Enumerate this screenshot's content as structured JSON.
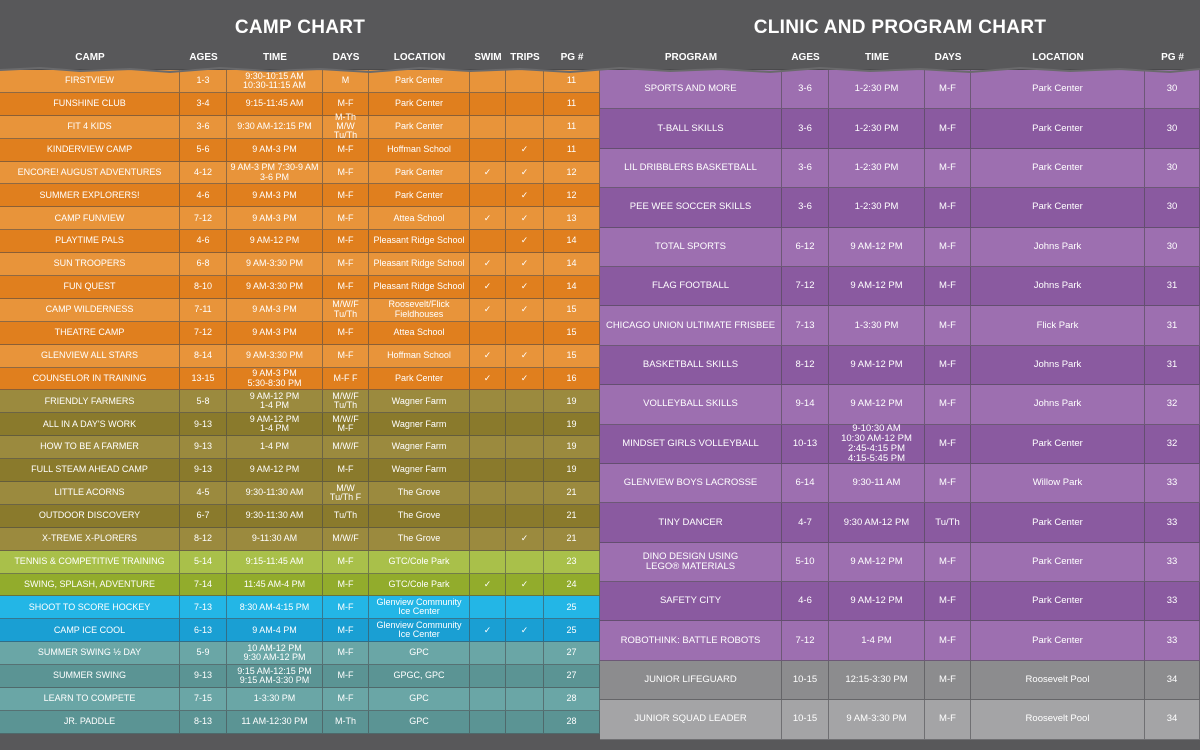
{
  "camp": {
    "title": "CAMP CHART",
    "headers": {
      "name": "CAMP",
      "ages": "AGES",
      "time": "TIME",
      "days": "DAYS",
      "location": "LOCATION",
      "swim": "SWIM",
      "trips": "TRIPS",
      "pg": "PG #"
    },
    "rows": [
      {
        "name": "FIRSTVIEW",
        "ages": "1-3",
        "time": "9:30-10:15 AM\n10:30-11:15 AM",
        "days": "M",
        "location": "Park Center",
        "swim": "",
        "trips": "",
        "pg": "11",
        "color": "#e8943a"
      },
      {
        "name": "FUNSHINE CLUB",
        "ages": "3-4",
        "time": "9:15-11:45 AM",
        "days": "M-F",
        "location": "Park Center",
        "swim": "",
        "trips": "",
        "pg": "11",
        "color": "#e07f1e"
      },
      {
        "name": "FIT 4 KIDS",
        "ages": "3-6",
        "time": "9:30 AM-12:15 PM",
        "days": "M-Th  M/W\nTu/Th",
        "location": "Park Center",
        "swim": "",
        "trips": "",
        "pg": "11",
        "color": "#e8943a"
      },
      {
        "name": "KINDERVIEW CAMP",
        "ages": "5-6",
        "time": "9 AM-3 PM",
        "days": "M-F",
        "location": "Hoffman School",
        "swim": "",
        "trips": "✓",
        "pg": "11",
        "color": "#e07f1e"
      },
      {
        "name": "ENCORE! AUGUST ADVENTURES",
        "ages": "4-12",
        "time": "9 AM-3 PM  7:30-9 AM\n3-6 PM",
        "days": "M-F",
        "location": "Park Center",
        "swim": "✓",
        "trips": "✓",
        "pg": "12",
        "color": "#e8943a"
      },
      {
        "name": "SUMMER EXPLORERS!",
        "ages": "4-6",
        "time": "9 AM-3 PM",
        "days": "M-F",
        "location": "Park Center",
        "swim": "",
        "trips": "✓",
        "pg": "12",
        "color": "#e07f1e"
      },
      {
        "name": "CAMP FUNVIEW",
        "ages": "7-12",
        "time": "9 AM-3 PM",
        "days": "M-F",
        "location": "Attea School",
        "swim": "✓",
        "trips": "✓",
        "pg": "13",
        "color": "#e8943a"
      },
      {
        "name": "PLAYTIME PALS",
        "ages": "4-6",
        "time": "9 AM-12 PM",
        "days": "M-F",
        "location": "Pleasant Ridge School",
        "swim": "",
        "trips": "✓",
        "pg": "14",
        "color": "#e07f1e"
      },
      {
        "name": "SUN TROOPERS",
        "ages": "6-8",
        "time": "9 AM-3:30 PM",
        "days": "M-F",
        "location": "Pleasant Ridge School",
        "swim": "✓",
        "trips": "✓",
        "pg": "14",
        "color": "#e8943a"
      },
      {
        "name": "FUN QUEST",
        "ages": "8-10",
        "time": "9 AM-3:30 PM",
        "days": "M-F",
        "location": "Pleasant Ridge School",
        "swim": "✓",
        "trips": "✓",
        "pg": "14",
        "color": "#e07f1e"
      },
      {
        "name": "CAMP WILDERNESS",
        "ages": "7-11",
        "time": "9 AM-3 PM",
        "days": "M/W/F\nTu/Th",
        "location": "Roosevelt/Flick\nFieldhouses",
        "swim": "✓",
        "trips": "✓",
        "pg": "15",
        "color": "#e8943a"
      },
      {
        "name": "THEATRE CAMP",
        "ages": "7-12",
        "time": "9 AM-3 PM",
        "days": "M-F",
        "location": "Attea School",
        "swim": "",
        "trips": "",
        "pg": "15",
        "color": "#e07f1e"
      },
      {
        "name": "GLENVIEW ALL STARS",
        "ages": "8-14",
        "time": "9 AM-3:30 PM",
        "days": "M-F",
        "location": "Hoffman School",
        "swim": "✓",
        "trips": "✓",
        "pg": "15",
        "color": "#e8943a"
      },
      {
        "name": "COUNSELOR IN TRAINING",
        "ages": "13-15",
        "time": "9 AM-3 PM\n5:30-8:30 PM",
        "days": "M-F   F",
        "location": "Park Center",
        "swim": "✓",
        "trips": "✓",
        "pg": "16",
        "color": "#e07f1e"
      },
      {
        "name": "FRIENDLY FARMERS",
        "ages": "5-8",
        "time": "9 AM-12 PM\n1-4 PM",
        "days": "M/W/F\nTu/Th",
        "location": "Wagner Farm",
        "swim": "",
        "trips": "",
        "pg": "19",
        "color": "#9b8a3e"
      },
      {
        "name": "ALL IN A DAY'S WORK",
        "ages": "9-13",
        "time": "9 AM-12 PM\n1-4 PM",
        "days": "M/W/F\nM-F",
        "location": "Wagner Farm",
        "swim": "",
        "trips": "",
        "pg": "19",
        "color": "#8a7a2c"
      },
      {
        "name": "HOW TO BE A FARMER",
        "ages": "9-13",
        "time": "1-4 PM",
        "days": "M/W/F",
        "location": "Wagner Farm",
        "swim": "",
        "trips": "",
        "pg": "19",
        "color": "#9b8a3e"
      },
      {
        "name": "FULL STEAM AHEAD CAMP",
        "ages": "9-13",
        "time": "9 AM-12 PM",
        "days": "M-F",
        "location": "Wagner Farm",
        "swim": "",
        "trips": "",
        "pg": "19",
        "color": "#8a7a2c"
      },
      {
        "name": "LITTLE ACORNS",
        "ages": "4-5",
        "time": "9:30-11:30 AM",
        "days": "M/W\nTu/Th   F",
        "location": "The Grove",
        "swim": "",
        "trips": "",
        "pg": "21",
        "color": "#9b8a3e"
      },
      {
        "name": "OUTDOOR DISCOVERY",
        "ages": "6-7",
        "time": "9:30-11:30 AM",
        "days": "Tu/Th",
        "location": "The Grove",
        "swim": "",
        "trips": "",
        "pg": "21",
        "color": "#8a7a2c"
      },
      {
        "name": "X-TREME X-PLORERS",
        "ages": "8-12",
        "time": "9-11:30 AM",
        "days": "M/W/F",
        "location": "The Grove",
        "swim": "",
        "trips": "✓",
        "pg": "21",
        "color": "#9b8a3e"
      },
      {
        "name": "TENNIS & COMPETITIVE TRAINING",
        "ages": "5-14",
        "time": "9:15-11:45 AM",
        "days": "M-F",
        "location": "GTC/Cole Park",
        "swim": "",
        "trips": "",
        "pg": "23",
        "color": "#a9c04a"
      },
      {
        "name": "SWING, SPLASH, ADVENTURE",
        "ages": "7-14",
        "time": "11:45 AM-4 PM",
        "days": "M-F",
        "location": "GTC/Cole Park",
        "swim": "✓",
        "trips": "✓",
        "pg": "24",
        "color": "#92ac2c"
      },
      {
        "name": "SHOOT TO SCORE HOCKEY",
        "ages": "7-13",
        "time": "8:30 AM-4:15 PM",
        "days": "M-F",
        "location": "Glenview Community\nIce Center",
        "swim": "",
        "trips": "",
        "pg": "25",
        "color": "#23b6e6"
      },
      {
        "name": "CAMP ICE COOL",
        "ages": "6-13",
        "time": "9 AM-4 PM",
        "days": "M-F",
        "location": "Glenview Community\nIce Center",
        "swim": "✓",
        "trips": "✓",
        "pg": "25",
        "color": "#1a9fd3"
      },
      {
        "name": "SUMMER SWING ½ DAY",
        "ages": "5-9",
        "time": "10 AM-12 PM\n9:30 AM-12 PM",
        "days": "M-F",
        "location": "GPC",
        "swim": "",
        "trips": "",
        "pg": "27",
        "color": "#6aa6a6"
      },
      {
        "name": "SUMMER SWING",
        "ages": "9-13",
        "time": "9:15 AM-12:15 PM\n9:15 AM-3:30 PM",
        "days": "M-F",
        "location": "GPGC, GPC",
        "swim": "",
        "trips": "",
        "pg": "27",
        "color": "#5b9494"
      },
      {
        "name": "LEARN TO COMPETE",
        "ages": "7-15",
        "time": "1-3:30 PM",
        "days": "M-F",
        "location": "GPC",
        "swim": "",
        "trips": "",
        "pg": "28",
        "color": "#6aa6a6"
      },
      {
        "name": "JR. PADDLE",
        "ages": "8-13",
        "time": "11 AM-12:30 PM",
        "days": "M-Th",
        "location": "GPC",
        "swim": "",
        "trips": "",
        "pg": "28",
        "color": "#5b9494"
      }
    ]
  },
  "clinic": {
    "title": "CLINIC AND PROGRAM CHART",
    "headers": {
      "name": "PROGRAM",
      "ages": "AGES",
      "time": "TIME",
      "days": "DAYS",
      "location": "LOCATION",
      "pg": "PG #"
    },
    "rows": [
      {
        "name": "SPORTS AND MORE",
        "ages": "3-6",
        "time": "1-2:30 PM",
        "days": "M-F",
        "location": "Park Center",
        "pg": "30",
        "color": "#9d6fb0"
      },
      {
        "name": "T-BALL SKILLS",
        "ages": "3-6",
        "time": "1-2:30 PM",
        "days": "M-F",
        "location": "Park Center",
        "pg": "30",
        "color": "#8a5aa0"
      },
      {
        "name": "LIL DRIBBLERS BASKETBALL",
        "ages": "3-6",
        "time": "1-2:30 PM",
        "days": "M-F",
        "location": "Park Center",
        "pg": "30",
        "color": "#9d6fb0"
      },
      {
        "name": "PEE WEE SOCCER SKILLS",
        "ages": "3-6",
        "time": "1-2:30 PM",
        "days": "M-F",
        "location": "Park Center",
        "pg": "30",
        "color": "#8a5aa0"
      },
      {
        "name": "TOTAL SPORTS",
        "ages": "6-12",
        "time": "9 AM-12 PM",
        "days": "M-F",
        "location": "Johns Park",
        "pg": "30",
        "color": "#9d6fb0"
      },
      {
        "name": "FLAG FOOTBALL",
        "ages": "7-12",
        "time": "9 AM-12 PM",
        "days": "M-F",
        "location": "Johns Park",
        "pg": "31",
        "color": "#8a5aa0"
      },
      {
        "name": "CHICAGO UNION ULTIMATE FRISBEE",
        "ages": "7-13",
        "time": "1-3:30 PM",
        "days": "M-F",
        "location": "Flick Park",
        "pg": "31",
        "color": "#9d6fb0"
      },
      {
        "name": "BASKETBALL SKILLS",
        "ages": "8-12",
        "time": "9 AM-12 PM",
        "days": "M-F",
        "location": "Johns Park",
        "pg": "31",
        "color": "#8a5aa0"
      },
      {
        "name": "VOLLEYBALL SKILLS",
        "ages": "9-14",
        "time": "9 AM-12 PM",
        "days": "M-F",
        "location": "Johns Park",
        "pg": "32",
        "color": "#9d6fb0"
      },
      {
        "name": "MINDSET GIRLS VOLLEYBALL",
        "ages": "10-13",
        "time": "9-10:30 AM\n10:30 AM-12 PM\n2:45-4:15 PM\n4:15-5:45 PM",
        "days": "M-F",
        "location": "Park Center",
        "pg": "32",
        "color": "#8a5aa0"
      },
      {
        "name": "GLENVIEW BOYS LACROSSE",
        "ages": "6-14",
        "time": "9:30-11 AM",
        "days": "M-F",
        "location": "Willow Park",
        "pg": "33",
        "color": "#9d6fb0"
      },
      {
        "name": "TINY DANCER",
        "ages": "4-7",
        "time": "9:30 AM-12 PM",
        "days": "Tu/Th",
        "location": "Park Center",
        "pg": "33",
        "color": "#8a5aa0"
      },
      {
        "name": "DINO DESIGN USING\nLEGO® MATERIALS",
        "ages": "5-10",
        "time": "9 AM-12 PM",
        "days": "M-F",
        "location": "Park Center",
        "pg": "33",
        "color": "#9d6fb0"
      },
      {
        "name": "SAFETY CITY",
        "ages": "4-6",
        "time": "9 AM-12 PM",
        "days": "M-F",
        "location": "Park Center",
        "pg": "33",
        "color": "#8a5aa0"
      },
      {
        "name": "ROBOTHINK: BATTLE ROBOTS",
        "ages": "7-12",
        "time": "1-4 PM",
        "days": "M-F",
        "location": "Park Center",
        "pg": "33",
        "color": "#9d6fb0"
      },
      {
        "name": "JUNIOR LIFEGUARD",
        "ages": "10-15",
        "time": "12:15-3:30 PM",
        "days": "M-F",
        "location": "Roosevelt Pool",
        "pg": "34",
        "color": "#8c8c8e"
      },
      {
        "name": "JUNIOR SQUAD LEADER",
        "ages": "10-15",
        "time": "9 AM-3:30 PM",
        "days": "M-F",
        "location": "Roosevelt Pool",
        "pg": "34",
        "color": "#a4a4a6"
      }
    ]
  }
}
